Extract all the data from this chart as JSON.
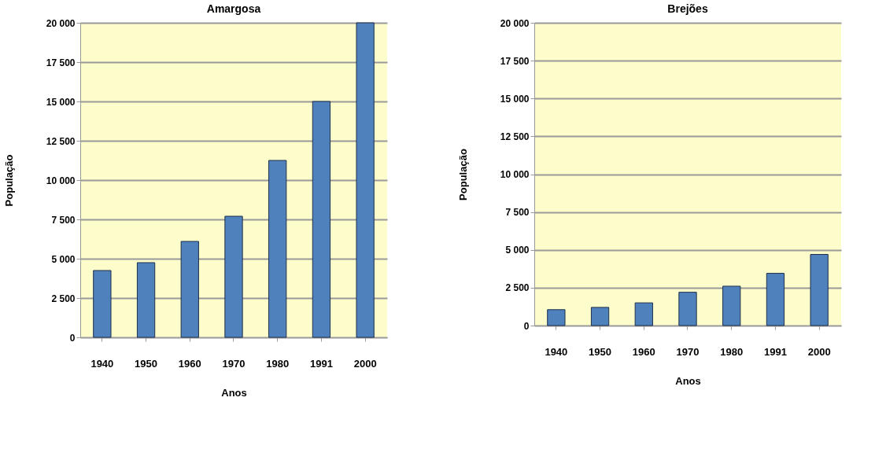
{
  "chart_data": [
    {
      "type": "bar",
      "title": "Amargosa",
      "xlabel": "Anos",
      "ylabel": "População",
      "categories": [
        "1940",
        "1950",
        "1960",
        "1970",
        "1980",
        "1991",
        "2000"
      ],
      "values": [
        4250,
        4750,
        6100,
        7700,
        11250,
        15000,
        20000
      ],
      "color": "#4f81bd",
      "ylim": [
        0,
        20000
      ],
      "yticks": [
        0,
        {
          "value": 2500,
          "label": "2 500"
        },
        {
          "value": 5000,
          "label": "5 000"
        },
        {
          "value": 7500,
          "label": "7 500"
        },
        {
          "value": 10000,
          "label": "10 000"
        },
        {
          "value": 12500,
          "label": "12 500"
        },
        {
          "value": 15000,
          "label": "15 000"
        },
        {
          "value": 17500,
          "label": "17 500"
        },
        {
          "value": 20000,
          "label": "20 000"
        }
      ],
      "grid": "y"
    },
    {
      "type": "bar",
      "title": "Brejões",
      "xlabel": "Anos",
      "ylabel": "População",
      "categories": [
        "1940",
        "1950",
        "1960",
        "1970",
        "1980",
        "1991",
        "2000"
      ],
      "values": [
        1050,
        1200,
        1500,
        2200,
        2600,
        3450,
        4700
      ],
      "color": "#4f81bd",
      "ylim": [
        0,
        20000
      ],
      "yticks": [
        0,
        {
          "value": 2500,
          "label": "2 500"
        },
        {
          "value": 5000,
          "label": "5 000"
        },
        {
          "value": 7500,
          "label": "7 500"
        },
        {
          "value": 10000,
          "label": "10 000"
        },
        {
          "value": 12500,
          "label": "12 500"
        },
        {
          "value": 15000,
          "label": "15 000"
        },
        {
          "value": 17500,
          "label": "17 500"
        },
        {
          "value": 20000,
          "label": "20 000"
        }
      ],
      "grid": "y"
    }
  ]
}
